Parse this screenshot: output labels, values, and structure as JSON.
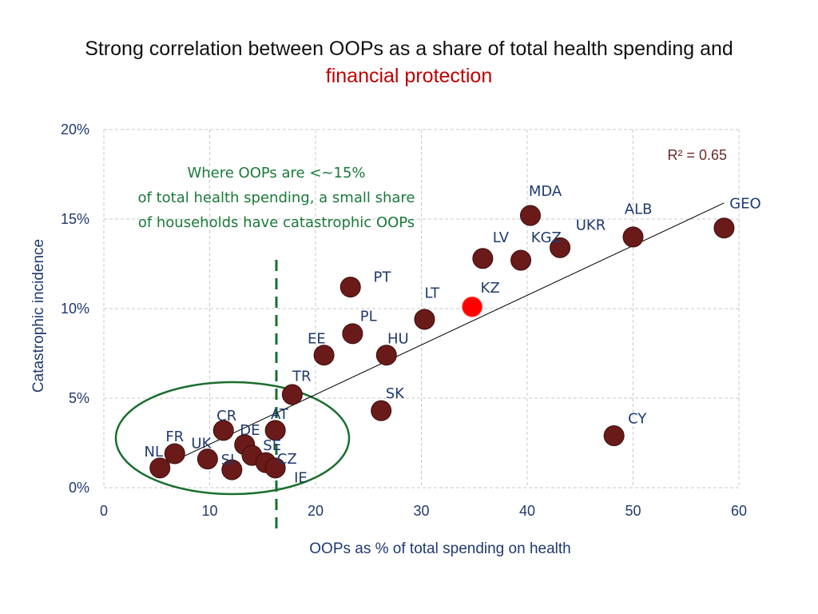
{
  "chart_data": {
    "type": "scatter",
    "title_line1": "Strong correlation between OOPs as a share of total health spending and",
    "title_line2": "financial protection",
    "xlabel": "OOPs as % of total spending on health",
    "ylabel": "Catastrophic incidence",
    "xlim": [
      0,
      60
    ],
    "ylim": [
      0,
      20
    ],
    "x_ticks": [
      {
        "value": 0,
        "label": "0"
      },
      {
        "value": 10,
        "label": "10"
      },
      {
        "value": 20,
        "label": "20"
      },
      {
        "value": 30,
        "label": "30"
      },
      {
        "value": 40,
        "label": "40"
      },
      {
        "value": 50,
        "label": "50"
      },
      {
        "value": 60,
        "label": "60"
      }
    ],
    "y_ticks": [
      {
        "value": 0,
        "label": "0%"
      },
      {
        "value": 5,
        "label": "5%"
      },
      {
        "value": 10,
        "label": "10%"
      },
      {
        "value": 15,
        "label": "15%"
      },
      {
        "value": 20,
        "label": "20%"
      }
    ],
    "grid": true,
    "r_squared": "R² = 0.65",
    "trendline": {
      "x0": 5.2,
      "y0": 1.1,
      "x1": 58.6,
      "y1": 15.9
    },
    "threshold_x": 16.3,
    "annotation_lines": [
      "Where OOPs are <~15%",
      "of total health spending, a small share",
      "of households have catastrophic OOPs"
    ],
    "colors": {
      "point": "#6b1a1a",
      "highlight": "#ff0000",
      "annotation": "#1a7a3a",
      "threshold": "#1a6e2e",
      "ellipse": "#1a6e2e",
      "axis_text": "#1f3a6e"
    },
    "points": [
      {
        "label": "NL",
        "x": 5.3,
        "y": 1.1,
        "lx": 4.7,
        "ly": 1.75
      },
      {
        "label": "FR",
        "x": 6.7,
        "y": 1.9,
        "lx": 6.7,
        "ly": 2.6
      },
      {
        "label": "UK",
        "x": 9.8,
        "y": 1.6,
        "lx": 9.2,
        "ly": 2.2
      },
      {
        "label": "CR",
        "x": 11.3,
        "y": 3.2,
        "lx": 11.6,
        "ly": 3.75
      },
      {
        "label": "SI",
        "x": 12.1,
        "y": 1.0,
        "lx": 11.7,
        "ly": 1.3
      },
      {
        "label": "DE",
        "x": 13.3,
        "y": 2.4,
        "lx": 13.8,
        "ly": 2.95
      },
      {
        "label": "SE",
        "x": 14.0,
        "y": 1.8,
        "lx": 15.9,
        "ly": 2.1
      },
      {
        "label": "AT",
        "x": 16.2,
        "y": 3.2,
        "lx": 16.6,
        "ly": 3.85
      },
      {
        "label": "CZ",
        "x": 15.3,
        "y": 1.4,
        "lx": 17.3,
        "ly": 1.35
      },
      {
        "label": "IE",
        "x": 16.2,
        "y": 1.1,
        "lx": 18.6,
        "ly": 0.3
      },
      {
        "label": "TR",
        "x": 17.8,
        "y": 5.2,
        "lx": 18.7,
        "ly": 5.95
      },
      {
        "label": "EE",
        "x": 20.8,
        "y": 7.4,
        "lx": 20.1,
        "ly": 8.05
      },
      {
        "label": "PT",
        "x": 23.3,
        "y": 11.2,
        "lx": 26.3,
        "ly": 11.5
      },
      {
        "label": "PL",
        "x": 23.5,
        "y": 8.6,
        "lx": 25.0,
        "ly": 9.3
      },
      {
        "label": "HU",
        "x": 26.7,
        "y": 7.4,
        "lx": 27.8,
        "ly": 8.05
      },
      {
        "label": "SK",
        "x": 26.2,
        "y": 4.3,
        "lx": 27.5,
        "ly": 5.0
      },
      {
        "label": "LT",
        "x": 30.3,
        "y": 9.4,
        "lx": 31.0,
        "ly": 10.6
      },
      {
        "label": "KZ",
        "x": 34.8,
        "y": 10.1,
        "lx": 36.5,
        "ly": 10.9,
        "highlight": true
      },
      {
        "label": "LV",
        "x": 35.8,
        "y": 12.8,
        "lx": 37.5,
        "ly": 13.7
      },
      {
        "label": "KGZ",
        "x": 39.4,
        "y": 12.7,
        "lx": 41.8,
        "ly": 13.7
      },
      {
        "label": "MDA",
        "x": 40.3,
        "y": 15.2,
        "lx": 41.7,
        "ly": 16.3
      },
      {
        "label": "UKR",
        "x": 43.1,
        "y": 13.4,
        "lx": 46.0,
        "ly": 14.4
      },
      {
        "label": "ALB",
        "x": 50.0,
        "y": 14.0,
        "lx": 50.5,
        "ly": 15.3
      },
      {
        "label": "GEO",
        "x": 58.6,
        "y": 14.5,
        "lx": 60.6,
        "ly": 15.6
      },
      {
        "label": "CY",
        "x": 48.2,
        "y": 2.9,
        "lx": 50.4,
        "ly": 3.6
      }
    ]
  }
}
